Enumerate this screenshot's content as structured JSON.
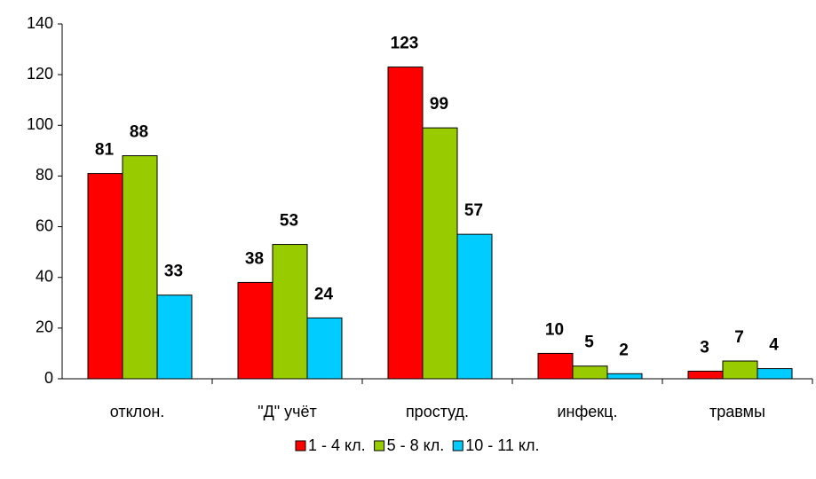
{
  "chart_data": {
    "type": "bar",
    "categories": [
      "отклон.",
      "\"Д\" учёт",
      "простуд.",
      "инфекц.",
      "травмы"
    ],
    "series": [
      {
        "name": "1 - 4 кл.",
        "color": "#ff0000",
        "values": [
          81,
          38,
          123,
          10,
          3
        ]
      },
      {
        "name": "5 - 8 кл.",
        "color": "#99cc00",
        "values": [
          88,
          53,
          99,
          5,
          7
        ]
      },
      {
        "name": "10 - 11 кл.",
        "color": "#00ccff",
        "values": [
          33,
          24,
          57,
          2,
          4
        ]
      }
    ],
    "ylim": [
      0,
      140
    ],
    "yticks": [
      0,
      20,
      40,
      60,
      80,
      100,
      120,
      140
    ],
    "grid": false,
    "legend": "bottom"
  }
}
